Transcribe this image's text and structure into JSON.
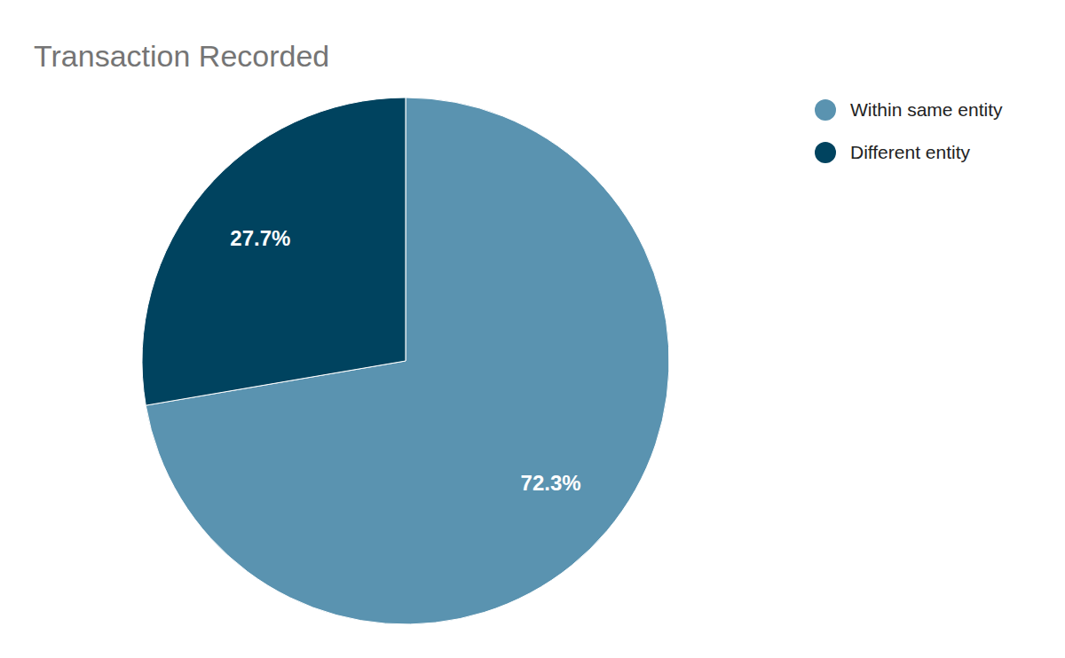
{
  "chart_data": {
    "type": "pie",
    "title": "Transaction Recorded",
    "categories": [
      "Within same entity",
      "Different entity"
    ],
    "values": [
      72.3,
      27.7
    ],
    "value_labels": [
      "72.3%",
      "27.7%"
    ],
    "colors": [
      "#5a93b0",
      "#00435f"
    ],
    "data_labels": true,
    "legend": "top-right"
  }
}
